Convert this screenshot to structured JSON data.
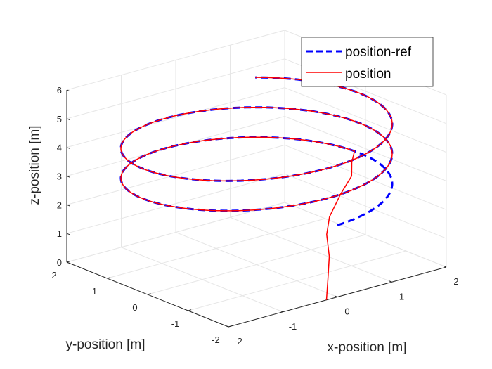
{
  "chart_data": {
    "type": "line3d",
    "xlabel": "x-position [m]",
    "ylabel": "y-position [m]",
    "zlabel": "z-position [m]",
    "xlim": [
      -2,
      2
    ],
    "ylim": [
      -2,
      2
    ],
    "zlim": [
      0,
      6
    ],
    "xticks": [
      "-2",
      "-1",
      "0",
      "1",
      "2"
    ],
    "yticks": [
      "-2",
      "-1",
      "0",
      "1",
      "2"
    ],
    "zticks": [
      "0",
      "1",
      "2",
      "3",
      "4",
      "5",
      "6"
    ],
    "grid": true,
    "legend_position": "top-right",
    "colors": {
      "reference": "#0000ff",
      "actual": "#ff0000"
    },
    "series": [
      {
        "name": "position-ref",
        "style": "dashed",
        "shape": "helix",
        "radius": 2,
        "center": [
          0,
          0
        ],
        "z_start": 2.5,
        "z_end": 5,
        "turns": 2.4
      },
      {
        "name": "position",
        "style": "solid",
        "start_points": [
          [
            -0.2,
            -2.0,
            0.0
          ],
          [
            -0.1,
            -1.9,
            0.6
          ],
          [
            0.0,
            -1.8,
            1.3
          ],
          [
            0.1,
            -1.6,
            1.9
          ],
          [
            0.3,
            -1.4,
            2.3
          ],
          [
            0.8,
            -1.0,
            2.6
          ],
          [
            1.3,
            -0.6,
            2.75
          ],
          [
            1.6,
            -0.2,
            2.85
          ]
        ],
        "helix_start_turn": 0.27,
        "turns": 2.4
      }
    ]
  }
}
